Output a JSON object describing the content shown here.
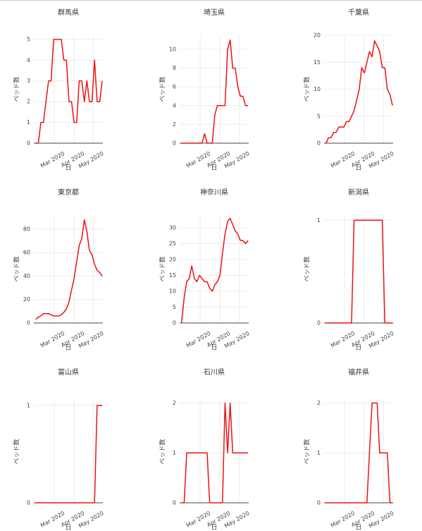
{
  "chart_data": [
    {
      "type": "line",
      "title": "群馬県",
      "xlabel": "日",
      "ylabel": "ベッド数",
      "color": "#ee1111",
      "x": [
        0,
        4,
        8,
        12,
        16,
        20,
        24,
        28,
        32,
        36,
        40,
        44,
        48,
        52,
        56,
        60,
        64,
        68,
        72,
        76,
        80,
        84,
        88,
        92,
        96,
        100,
        104
      ],
      "values": [
        0,
        0,
        1,
        1,
        2,
        3,
        3,
        5,
        5,
        5,
        5,
        4,
        4,
        2,
        2,
        1,
        1,
        3,
        3,
        2,
        3,
        2,
        2,
        4,
        2,
        2,
        3
      ],
      "xlim": [
        -3,
        105
      ],
      "xticks": [
        {
          "value": 29,
          "label": "Mar 2020"
        },
        {
          "value": 60,
          "label": "Apr 2020"
        },
        {
          "value": 90,
          "label": "May 2020"
        }
      ],
      "ylim": [
        0,
        5.2
      ],
      "yticks": [
        0,
        1,
        2,
        3,
        4,
        5
      ],
      "grid": true
    },
    {
      "type": "line",
      "title": "埼玉県",
      "xlabel": "日",
      "ylabel": "ベッド数",
      "color": "#ee1111",
      "x": [
        0,
        4,
        8,
        12,
        16,
        20,
        24,
        28,
        32,
        36,
        40,
        44,
        48,
        52,
        56,
        60,
        64,
        68,
        72,
        76,
        80,
        84,
        88,
        92,
        96,
        100,
        104
      ],
      "values": [
        0,
        0,
        0,
        0,
        0,
        0,
        0,
        0,
        0,
        1,
        0,
        0,
        0,
        3,
        4,
        4,
        4,
        4,
        10,
        11,
        8,
        8,
        6,
        5,
        5,
        4,
        4
      ],
      "xlim": [
        -3,
        105
      ],
      "xticks": [
        {
          "value": 29,
          "label": "Mar 2020"
        },
        {
          "value": 60,
          "label": "Apr 2020"
        },
        {
          "value": 90,
          "label": "May 2020"
        }
      ],
      "ylim": [
        0,
        11.5
      ],
      "yticks": [
        0,
        2,
        4,
        6,
        8,
        10
      ],
      "grid": true
    },
    {
      "type": "line",
      "title": "千葉県",
      "xlabel": "日",
      "ylabel": "ベッド数",
      "color": "#ee1111",
      "x": [
        0,
        4,
        8,
        12,
        16,
        20,
        24,
        28,
        32,
        36,
        40,
        44,
        48,
        52,
        56,
        60,
        64,
        68,
        72,
        76,
        80,
        84,
        88,
        92,
        96,
        100,
        104
      ],
      "values": [
        0,
        1,
        1,
        2,
        2,
        3,
        3,
        3,
        4,
        4,
        5,
        6,
        8,
        10,
        14,
        13,
        15,
        17,
        16,
        19,
        18,
        17,
        14,
        14,
        10,
        9,
        7
      ],
      "xlim": [
        -3,
        105
      ],
      "xticks": [
        {
          "value": 29,
          "label": "Mar 2020"
        },
        {
          "value": 60,
          "label": "Apr 2020"
        },
        {
          "value": 90,
          "label": "May 2020"
        }
      ],
      "ylim": [
        0,
        20
      ],
      "yticks": [
        0,
        5,
        10,
        15,
        20
      ],
      "grid": true
    },
    {
      "type": "line",
      "title": "東京都",
      "xlabel": "日",
      "ylabel": "ベッド数",
      "color": "#ee1111",
      "x": [
        0,
        4,
        8,
        12,
        16,
        20,
        24,
        28,
        32,
        36,
        40,
        44,
        48,
        52,
        56,
        60,
        64,
        68,
        72,
        76,
        80,
        84,
        88,
        92,
        96,
        100,
        104
      ],
      "values": [
        3,
        5,
        6,
        8,
        8,
        8,
        7,
        6,
        6,
        6,
        7,
        9,
        12,
        18,
        28,
        38,
        52,
        66,
        72,
        88,
        78,
        62,
        58,
        50,
        45,
        43,
        40
      ],
      "xlim": [
        -3,
        105
      ],
      "xticks": [
        {
          "value": 29,
          "label": "Mar 2020"
        },
        {
          "value": 60,
          "label": "Apr 2020"
        },
        {
          "value": 90,
          "label": "May 2020"
        }
      ],
      "ylim": [
        0,
        92
      ],
      "yticks": [
        0,
        20,
        40,
        60,
        80
      ],
      "grid": true
    },
    {
      "type": "line",
      "title": "神奈川県",
      "xlabel": "日",
      "ylabel": "ベッド数",
      "color": "#ee1111",
      "x": [
        0,
        4,
        8,
        12,
        16,
        20,
        24,
        28,
        32,
        36,
        40,
        44,
        48,
        52,
        56,
        60,
        64,
        68,
        72,
        76,
        80,
        84,
        88,
        92,
        96,
        100,
        104
      ],
      "values": [
        0,
        8,
        13,
        14,
        18,
        14,
        13,
        15,
        14,
        13,
        13,
        11,
        10,
        12,
        13,
        15,
        22,
        28,
        32,
        33,
        31,
        29,
        28,
        26,
        26,
        25,
        26
      ],
      "xlim": [
        -3,
        105
      ],
      "xticks": [
        {
          "value": 29,
          "label": "Mar 2020"
        },
        {
          "value": 60,
          "label": "Apr 2020"
        },
        {
          "value": 90,
          "label": "May 2020"
        }
      ],
      "ylim": [
        0,
        34
      ],
      "yticks": [
        0,
        5,
        10,
        15,
        20,
        25,
        30
      ],
      "grid": true
    },
    {
      "type": "line",
      "title": "新潟県",
      "xlabel": "日",
      "ylabel": "ベッド数",
      "color": "#ee1111",
      "x": [
        0,
        4,
        8,
        12,
        16,
        20,
        24,
        28,
        32,
        36,
        40,
        44,
        48,
        52,
        56,
        60,
        64,
        68,
        72,
        76,
        80,
        84,
        88,
        92,
        96,
        100,
        104
      ],
      "values": [
        0,
        0,
        0,
        0,
        0,
        0,
        0,
        0,
        0,
        0,
        0,
        1,
        1,
        1,
        1,
        1,
        1,
        1,
        1,
        1,
        1,
        1,
        1,
        0,
        0,
        0,
        0
      ],
      "xlim": [
        -3,
        105
      ],
      "xticks": [
        {
          "value": 29,
          "label": "Mar 2020"
        },
        {
          "value": 60,
          "label": "Apr 2020"
        },
        {
          "value": 90,
          "label": "May 2020"
        }
      ],
      "ylim": [
        0,
        1.05
      ],
      "yticks": [
        0,
        1
      ],
      "grid": true
    },
    {
      "type": "line",
      "title": "富山県",
      "xlabel": "日",
      "ylabel": "ベッド数",
      "color": "#ee1111",
      "x": [
        0,
        4,
        8,
        12,
        16,
        20,
        24,
        28,
        32,
        36,
        40,
        44,
        48,
        52,
        56,
        60,
        64,
        68,
        72,
        76,
        80,
        84,
        88,
        92,
        96,
        100,
        104
      ],
      "values": [
        0,
        0,
        0,
        0,
        0,
        0,
        0,
        0,
        0,
        0,
        0,
        0,
        0,
        0,
        0,
        0,
        0,
        0,
        0,
        0,
        0,
        0,
        0,
        0,
        1,
        1,
        1
      ],
      "xlim": [
        -3,
        105
      ],
      "xticks": [
        {
          "value": 29,
          "label": "Mar 2020"
        },
        {
          "value": 60,
          "label": "Apr 2020"
        },
        {
          "value": 90,
          "label": "May 2020"
        }
      ],
      "ylim": [
        0,
        1.05
      ],
      "yticks": [
        0,
        1
      ],
      "grid": true
    },
    {
      "type": "line",
      "title": "石川県",
      "xlabel": "日",
      "ylabel": "ベッド数",
      "color": "#ee1111",
      "x": [
        0,
        4,
        8,
        12,
        16,
        20,
        24,
        28,
        32,
        36,
        40,
        44,
        48,
        52,
        56,
        60,
        64,
        68,
        72,
        76,
        80,
        84,
        88,
        92,
        96,
        100,
        104
      ],
      "values": [
        0,
        0,
        1,
        1,
        1,
        1,
        1,
        1,
        1,
        1,
        1,
        0,
        0,
        0,
        0,
        0,
        0,
        2,
        1,
        2,
        1,
        1,
        1,
        1,
        1,
        1,
        1
      ],
      "xlim": [
        -3,
        105
      ],
      "xticks": [
        {
          "value": 29,
          "label": "Mar 2020"
        },
        {
          "value": 60,
          "label": "Apr 2020"
        },
        {
          "value": 90,
          "label": "May 2020"
        }
      ],
      "ylim": [
        0,
        2.05
      ],
      "yticks": [
        0,
        1,
        2
      ],
      "grid": true
    },
    {
      "type": "line",
      "title": "福井県",
      "xlabel": "日",
      "ylabel": "ベッド数",
      "color": "#ee1111",
      "x": [
        0,
        4,
        8,
        12,
        16,
        20,
        24,
        28,
        32,
        36,
        40,
        44,
        48,
        52,
        56,
        60,
        64,
        68,
        72,
        76,
        80,
        84,
        88,
        92,
        96,
        100,
        104
      ],
      "values": [
        0,
        0,
        0,
        0,
        0,
        0,
        0,
        0,
        0,
        0,
        0,
        0,
        0,
        0,
        0,
        0,
        0,
        1,
        2,
        2,
        2,
        1,
        1,
        1,
        1,
        0,
        0
      ],
      "xlim": [
        -3,
        105
      ],
      "xticks": [
        {
          "value": 29,
          "label": "Mar 2020"
        },
        {
          "value": 60,
          "label": "Apr 2020"
        },
        {
          "value": 90,
          "label": "May 2020"
        }
      ],
      "ylim": [
        0,
        2.05
      ],
      "yticks": [
        0,
        1,
        2
      ],
      "grid": true
    }
  ]
}
